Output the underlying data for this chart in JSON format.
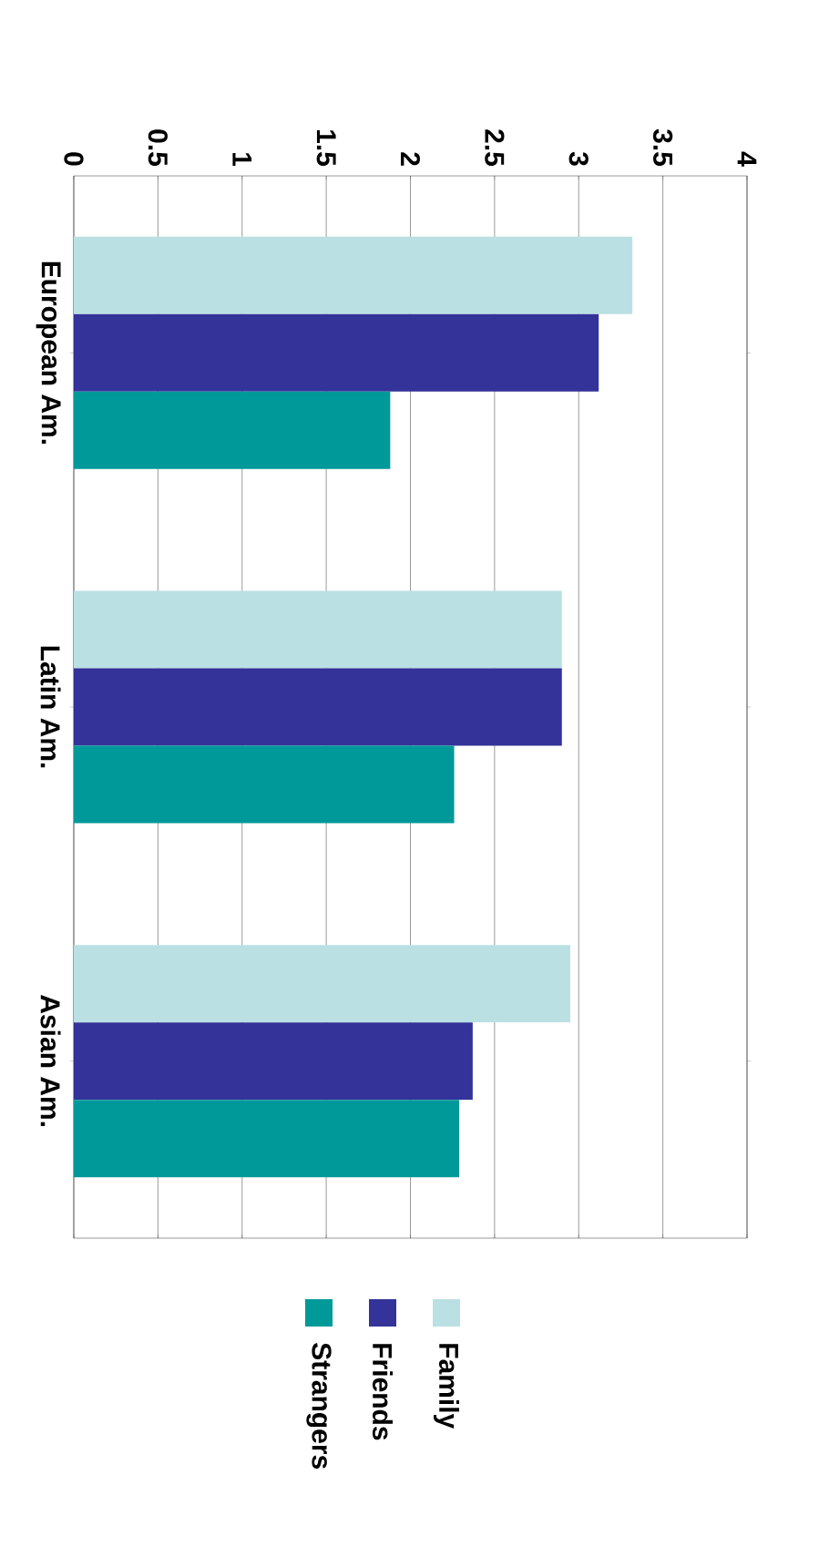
{
  "chart_data": {
    "type": "bar",
    "orientation": "horizontal",
    "categories": [
      "European Am.",
      "Latin Am.",
      "Asian Am."
    ],
    "series": [
      {
        "name": "Family",
        "color": "#bbe0e3",
        "values": [
          3.32,
          2.9,
          2.95
        ]
      },
      {
        "name": "Friends",
        "color": "#333399",
        "values": [
          3.12,
          2.9,
          2.37
        ]
      },
      {
        "name": "Strangers",
        "color": "#009999",
        "values": [
          1.88,
          2.26,
          2.29
        ]
      }
    ],
    "xlim": [
      0,
      4
    ],
    "xticks": [
      0,
      0.5,
      1,
      1.5,
      2,
      2.5,
      3,
      3.5,
      4
    ],
    "grid": "x",
    "legend": "bottom"
  }
}
